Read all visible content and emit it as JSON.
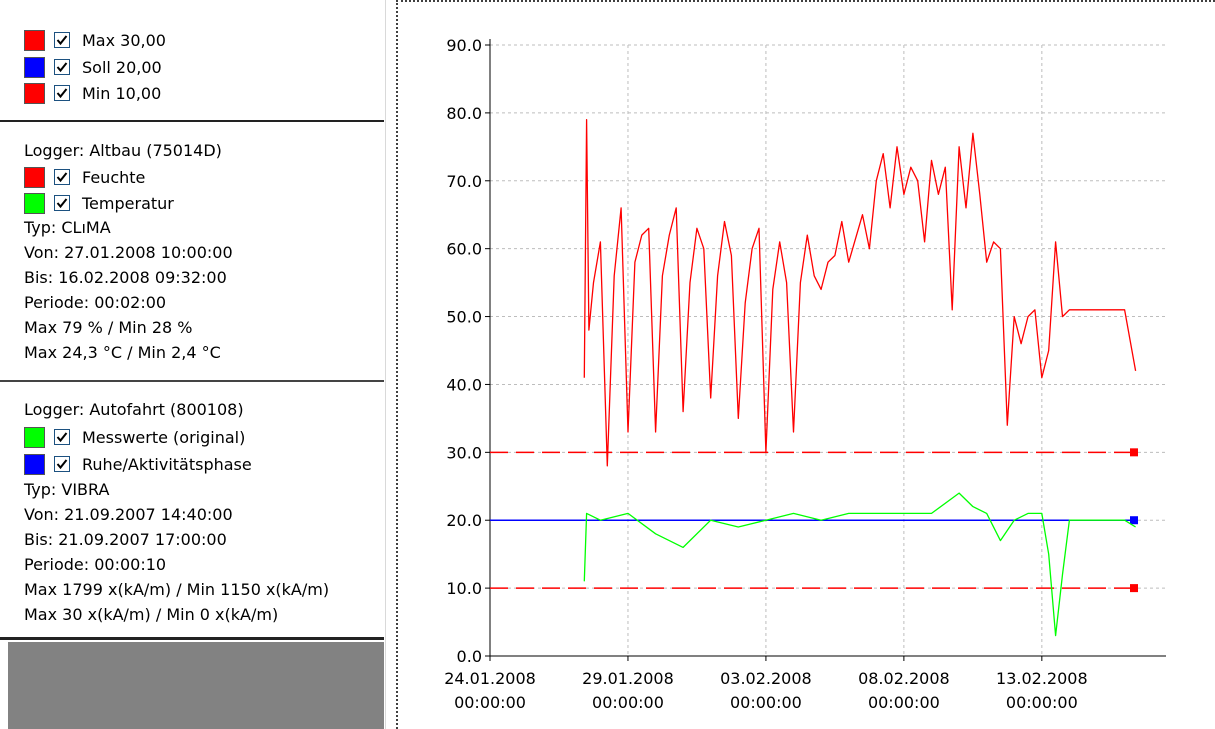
{
  "limits": [
    {
      "label": "Max 30,00",
      "color": "#ff0000",
      "checked": true
    },
    {
      "label": "Soll 20,00",
      "color": "#0000ff",
      "checked": true
    },
    {
      "label": "Min 10,00",
      "color": "#ff0000",
      "checked": true
    }
  ],
  "logger1": {
    "title": "Logger: Altbau (75014D)",
    "channels": [
      {
        "label": "Feuchte",
        "color": "#ff0000",
        "checked": true
      },
      {
        "label": "Temperatur",
        "color": "#00ff00",
        "checked": true
      }
    ],
    "typ": "Typ: CLıMA",
    "von": "Von: 27.01.2008 10:00:00",
    "bis": "Bis:   16.02.2008 09:32:00",
    "periode": "Periode: 00:02:00",
    "stat1": "Max 79 % / Min 28 %",
    "stat2": "Max 24,3 °C / Min 2,4 °C"
  },
  "logger2": {
    "title": "Logger: Autofahrt (800108)",
    "channels": [
      {
        "label": "Messwerte (original)",
        "color": "#00ff00",
        "checked": true
      },
      {
        "label": "Ruhe/Aktivitätsphase",
        "color": "#0000ff",
        "checked": true
      }
    ],
    "typ": "Typ: VIBRA",
    "von": "Von: 21.09.2007 14:40:00",
    "bis": "Bis:   21.09.2007 17:00:00",
    "periode": "Periode: 00:00:10",
    "stat1": "Max 1799 x(kA/m) / Min 1150 x(kA/m)",
    "stat2": "Max 30 x(kA/m) / Min 0 x(kA/m)"
  },
  "chart_data": {
    "type": "line",
    "ylim": [
      0,
      90
    ],
    "yticks": [
      "0.0",
      "10.0",
      "20.0",
      "30.0",
      "40.0",
      "50.0",
      "60.0",
      "70.0",
      "80.0",
      "90.0"
    ],
    "xlim_days": "24.01.2008 – 18.02.2008",
    "xticks": [
      {
        "date": "24.01.2008",
        "time": "00:00:00"
      },
      {
        "date": "29.01.2008",
        "time": "00:00:00"
      },
      {
        "date": "03.02.2008",
        "time": "00:00:00"
      },
      {
        "date": "08.02.2008",
        "time": "00:00:00"
      },
      {
        "date": "13.02.2008",
        "time": "00:00:00"
      }
    ],
    "grid": true,
    "colors": {
      "feuchte": "#ff0000",
      "temperatur": "#00ff00",
      "soll": "#0000ff",
      "limit": "#ff0000"
    },
    "reference_lines": [
      {
        "label": "Max",
        "y": 30,
        "color": "#ff0000",
        "style": "dashed"
      },
      {
        "label": "Soll",
        "y": 20,
        "color": "#0000ff",
        "style": "solid"
      },
      {
        "label": "Min",
        "y": 10,
        "color": "#ff0000",
        "style": "dashed"
      }
    ],
    "series": [
      {
        "color": "#ff0000",
        "points": [
          [
            "27.01.2008 10:00",
            41
          ],
          [
            "27.01.2008 12:00",
            79
          ],
          [
            "27.01.2008 14:00",
            48
          ],
          [
            "27.01.2008 18:00",
            55
          ],
          [
            "28.01.2008 00:00",
            61
          ],
          [
            "28.01.2008 06:00",
            28
          ],
          [
            "28.01.2008 12:00",
            56
          ],
          [
            "28.01.2008 18:00",
            66
          ],
          [
            "29.01.2008 00:00",
            33
          ],
          [
            "29.01.2008 06:00",
            58
          ],
          [
            "29.01.2008 12:00",
            62
          ],
          [
            "29.01.2008 18:00",
            63
          ],
          [
            "30.01.2008 00:00",
            33
          ],
          [
            "30.01.2008 06:00",
            56
          ],
          [
            "30.01.2008 12:00",
            62
          ],
          [
            "30.01.2008 18:00",
            66
          ],
          [
            "31.01.2008 00:00",
            36
          ],
          [
            "31.01.2008 06:00",
            55
          ],
          [
            "31.01.2008 12:00",
            63
          ],
          [
            "31.01.2008 18:00",
            60
          ],
          [
            "01.02.2008 00:00",
            38
          ],
          [
            "01.02.2008 06:00",
            56
          ],
          [
            "01.02.2008 12:00",
            64
          ],
          [
            "01.02.2008 18:00",
            59
          ],
          [
            "02.02.2008 00:00",
            35
          ],
          [
            "02.02.2008 06:00",
            52
          ],
          [
            "02.02.2008 12:00",
            60
          ],
          [
            "02.02.2008 18:00",
            63
          ],
          [
            "03.02.2008 00:00",
            30
          ],
          [
            "03.02.2008 06:00",
            54
          ],
          [
            "03.02.2008 12:00",
            61
          ],
          [
            "03.02.2008 18:00",
            55
          ],
          [
            "04.02.2008 00:00",
            33
          ],
          [
            "04.02.2008 06:00",
            55
          ],
          [
            "04.02.2008 12:00",
            62
          ],
          [
            "04.02.2008 18:00",
            56
          ],
          [
            "05.02.2008 00:00",
            54
          ],
          [
            "05.02.2008 06:00",
            58
          ],
          [
            "05.02.2008 12:00",
            59
          ],
          [
            "05.02.2008 18:00",
            64
          ],
          [
            "06.02.2008 00:00",
            58
          ],
          [
            "06.02.2008 12:00",
            65
          ],
          [
            "06.02.2008 18:00",
            60
          ],
          [
            "07.02.2008 00:00",
            70
          ],
          [
            "07.02.2008 06:00",
            74
          ],
          [
            "07.02.2008 12:00",
            66
          ],
          [
            "07.02.2008 18:00",
            75
          ],
          [
            "08.02.2008 00:00",
            68
          ],
          [
            "08.02.2008 06:00",
            72
          ],
          [
            "08.02.2008 12:00",
            70
          ],
          [
            "08.02.2008 18:00",
            61
          ],
          [
            "09.02.2008 00:00",
            73
          ],
          [
            "09.02.2008 06:00",
            68
          ],
          [
            "09.02.2008 12:00",
            72
          ],
          [
            "09.02.2008 18:00",
            51
          ],
          [
            "10.02.2008 00:00",
            75
          ],
          [
            "10.02.2008 06:00",
            66
          ],
          [
            "10.02.2008 12:00",
            77
          ],
          [
            "10.02.2008 18:00",
            68
          ],
          [
            "11.02.2008 00:00",
            58
          ],
          [
            "11.02.2008 06:00",
            61
          ],
          [
            "11.02.2008 12:00",
            60
          ],
          [
            "11.02.2008 18:00",
            34
          ],
          [
            "12.02.2008 00:00",
            50
          ],
          [
            "12.02.2008 06:00",
            46
          ],
          [
            "12.02.2008 12:00",
            50
          ],
          [
            "12.02.2008 18:00",
            51
          ],
          [
            "13.02.2008 00:00",
            41
          ],
          [
            "13.02.2008 06:00",
            45
          ],
          [
            "13.02.2008 12:00",
            61
          ],
          [
            "13.02.2008 18:00",
            50
          ],
          [
            "14.02.2008 00:00",
            51
          ],
          [
            "15.02.2008 00:00",
            51
          ],
          [
            "16.02.2008 00:00",
            51
          ],
          [
            "16.02.2008 09:32",
            42
          ]
        ]
      },
      {
        "color": "#00ff00",
        "points": [
          [
            "27.01.2008 10:00",
            11
          ],
          [
            "27.01.2008 12:00",
            21
          ],
          [
            "28.01.2008 00:00",
            20
          ],
          [
            "29.01.2008 00:00",
            21
          ],
          [
            "30.01.2008 00:00",
            18
          ],
          [
            "31.01.2008 00:00",
            16
          ],
          [
            "01.02.2008 00:00",
            20
          ],
          [
            "02.02.2008 00:00",
            19
          ],
          [
            "03.02.2008 00:00",
            20
          ],
          [
            "04.02.2008 00:00",
            21
          ],
          [
            "05.02.2008 00:00",
            20
          ],
          [
            "06.02.2008 00:00",
            21
          ],
          [
            "07.02.2008 00:00",
            21
          ],
          [
            "08.02.2008 00:00",
            21
          ],
          [
            "09.02.2008 00:00",
            21
          ],
          [
            "10.02.2008 00:00",
            24
          ],
          [
            "10.02.2008 12:00",
            22
          ],
          [
            "11.02.2008 00:00",
            21
          ],
          [
            "11.02.2008 12:00",
            17
          ],
          [
            "12.02.2008 00:00",
            20
          ],
          [
            "12.02.2008 12:00",
            21
          ],
          [
            "13.02.2008 00:00",
            21
          ],
          [
            "13.02.2008 06:00",
            15
          ],
          [
            "13.02.2008 12:00",
            3
          ],
          [
            "13.02.2008 18:00",
            12
          ],
          [
            "14.02.2008 00:00",
            20
          ],
          [
            "15.02.2008 00:00",
            20
          ],
          [
            "16.02.2008 00:00",
            20
          ],
          [
            "16.02.2008 09:32",
            19
          ]
        ]
      }
    ]
  }
}
